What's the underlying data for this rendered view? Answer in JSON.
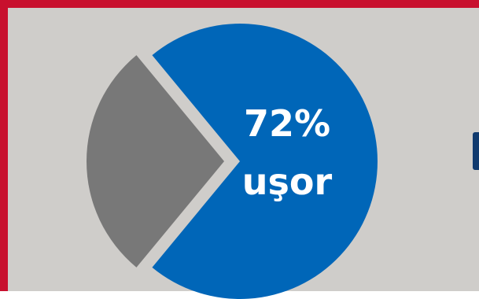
{
  "colors": {
    "border": "#c8102e",
    "background": "#cfcdca",
    "primary": "#0066b8",
    "secondary": "#787878",
    "text": "#ffffff",
    "edge_tab": "#103a6e"
  },
  "chart_data": {
    "type": "pie",
    "slices": [
      {
        "value": 72,
        "color": "#0066b8",
        "exploded": false
      },
      {
        "value": 28,
        "color": "#787878",
        "exploded": true
      }
    ],
    "center_value_text": "72%",
    "center_caption": "uşor"
  }
}
